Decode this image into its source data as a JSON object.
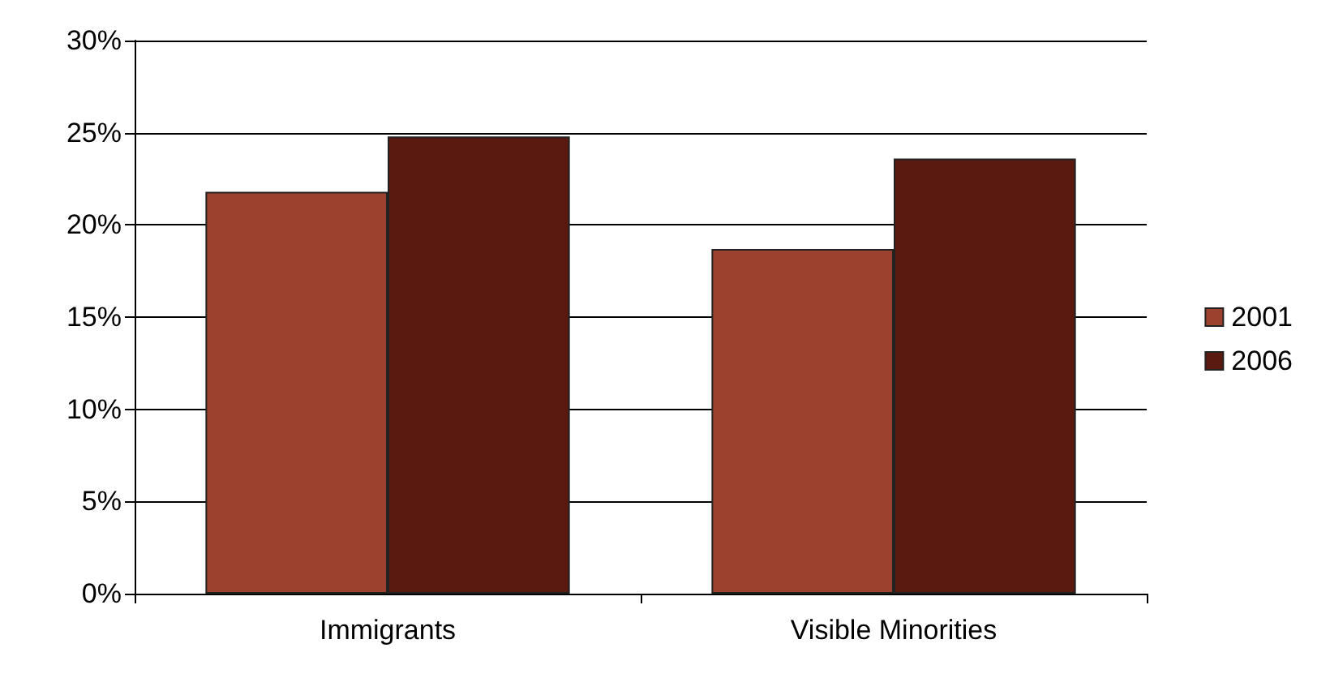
{
  "chart_data": {
    "type": "bar",
    "categories": [
      "Immigrants",
      "Visible Minorities"
    ],
    "series": [
      {
        "name": "2001",
        "color": "#9b412d",
        "values": [
          21.8,
          18.7
        ]
      },
      {
        "name": "2006",
        "color": "#5a1a0f",
        "values": [
          24.8,
          23.6
        ]
      }
    ],
    "ylim": [
      0,
      30
    ],
    "yticks": [
      {
        "value": 0,
        "label": "0%"
      },
      {
        "value": 5,
        "label": "5%"
      },
      {
        "value": 10,
        "label": "10%"
      },
      {
        "value": 15,
        "label": "15%"
      },
      {
        "value": 20,
        "label": "20%"
      },
      {
        "value": 25,
        "label": "25%"
      },
      {
        "value": 30,
        "label": "30%"
      }
    ],
    "grid": "y",
    "legend": "right"
  }
}
